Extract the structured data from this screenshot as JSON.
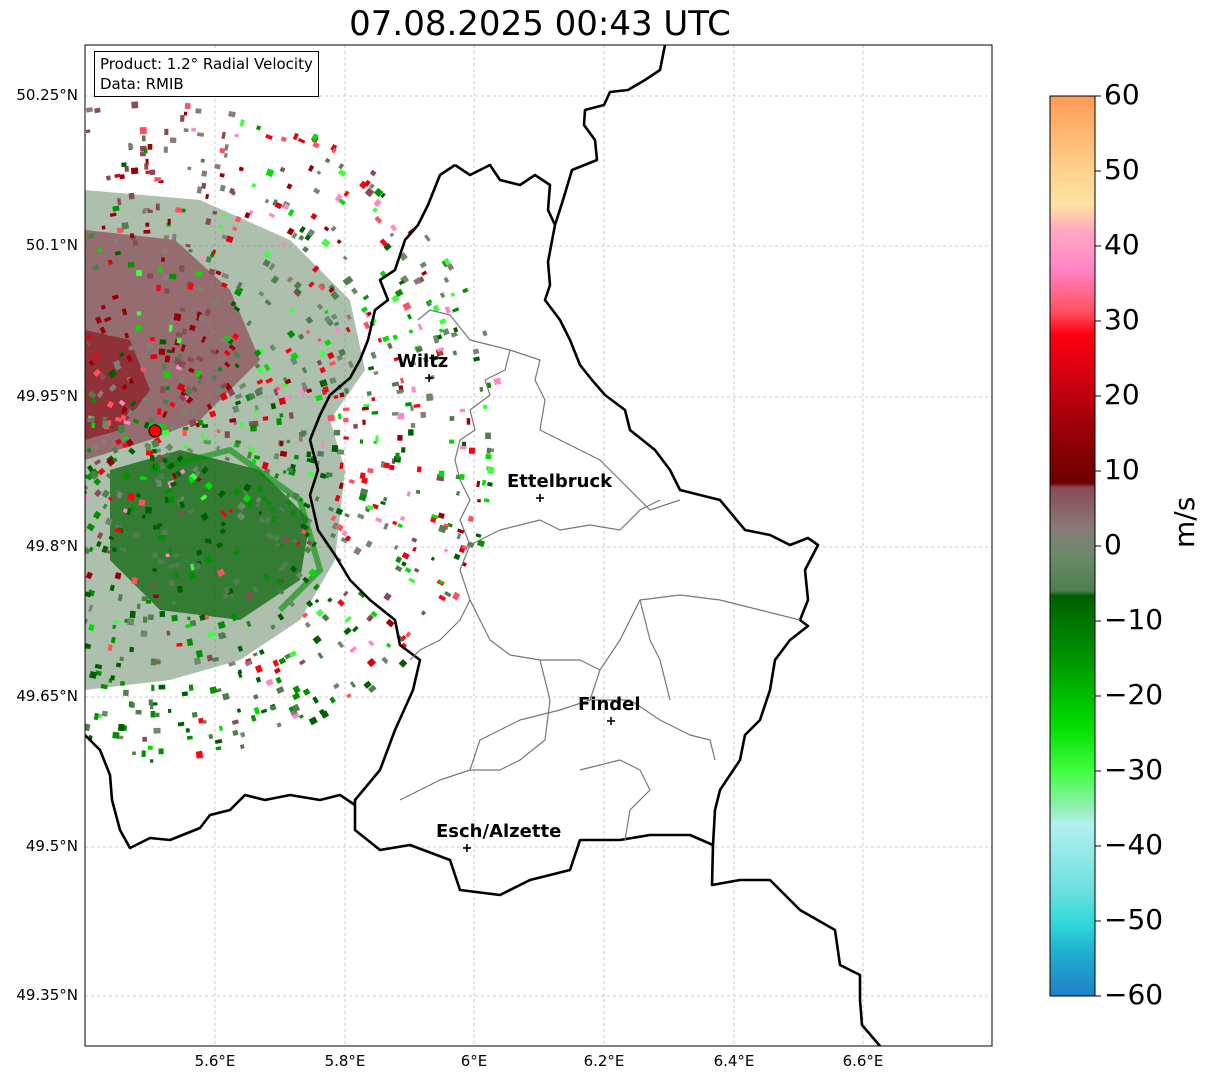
{
  "title": "07.08.2025 00:43 UTC",
  "info": {
    "product": "Product: 1.2° Radial Velocity",
    "source": "Data: RMIB"
  },
  "axes": {
    "lat_ticks": [
      "50.25°N",
      "50.1°N",
      "49.95°N",
      "49.8°N",
      "49.65°N",
      "49.5°N",
      "49.35°N"
    ],
    "lon_ticks": [
      "5.6°E",
      "5.8°E",
      "6°E",
      "6.2°E",
      "6.4°E",
      "6.6°E"
    ]
  },
  "places": [
    {
      "name": "Wiltz"
    },
    {
      "name": "Ettelbruck"
    },
    {
      "name": "Findel"
    },
    {
      "name": "Esch/Alzette"
    }
  ],
  "colorbar": {
    "unit": "m/s",
    "ticks": [
      "60",
      "50",
      "40",
      "30",
      "20",
      "10",
      "0",
      "−10",
      "−20",
      "−30",
      "−40",
      "−50",
      "−60"
    ],
    "min": -60,
    "max": 60,
    "colors": {
      "c60": "#ff9a55",
      "c50": "#ffd08c",
      "c45": "#ffe3a0",
      "c40": "#ffa8bf",
      "c35": "#ff88c8",
      "c30": "#ff5060",
      "c25": "#ff0010",
      "c20": "#e00010",
      "c12": "#9a0008",
      "c8": "#6e0000",
      "c5": "#8a4a55",
      "c2": "#8a7a78",
      "c0": "#6a8a6a",
      "cm5": "#4f7e4f",
      "cm8": "#005f00",
      "cm15": "#009000",
      "cm25": "#00dd00",
      "cm30": "#40ff40",
      "cm35": "#90f0b0",
      "cm38": "#b0f0f0",
      "cm45": "#70e0e0",
      "cm50": "#30d8d8",
      "cm55": "#20b0d0",
      "cm60": "#2080c8"
    }
  },
  "radar_site_color": "#ff0000"
}
